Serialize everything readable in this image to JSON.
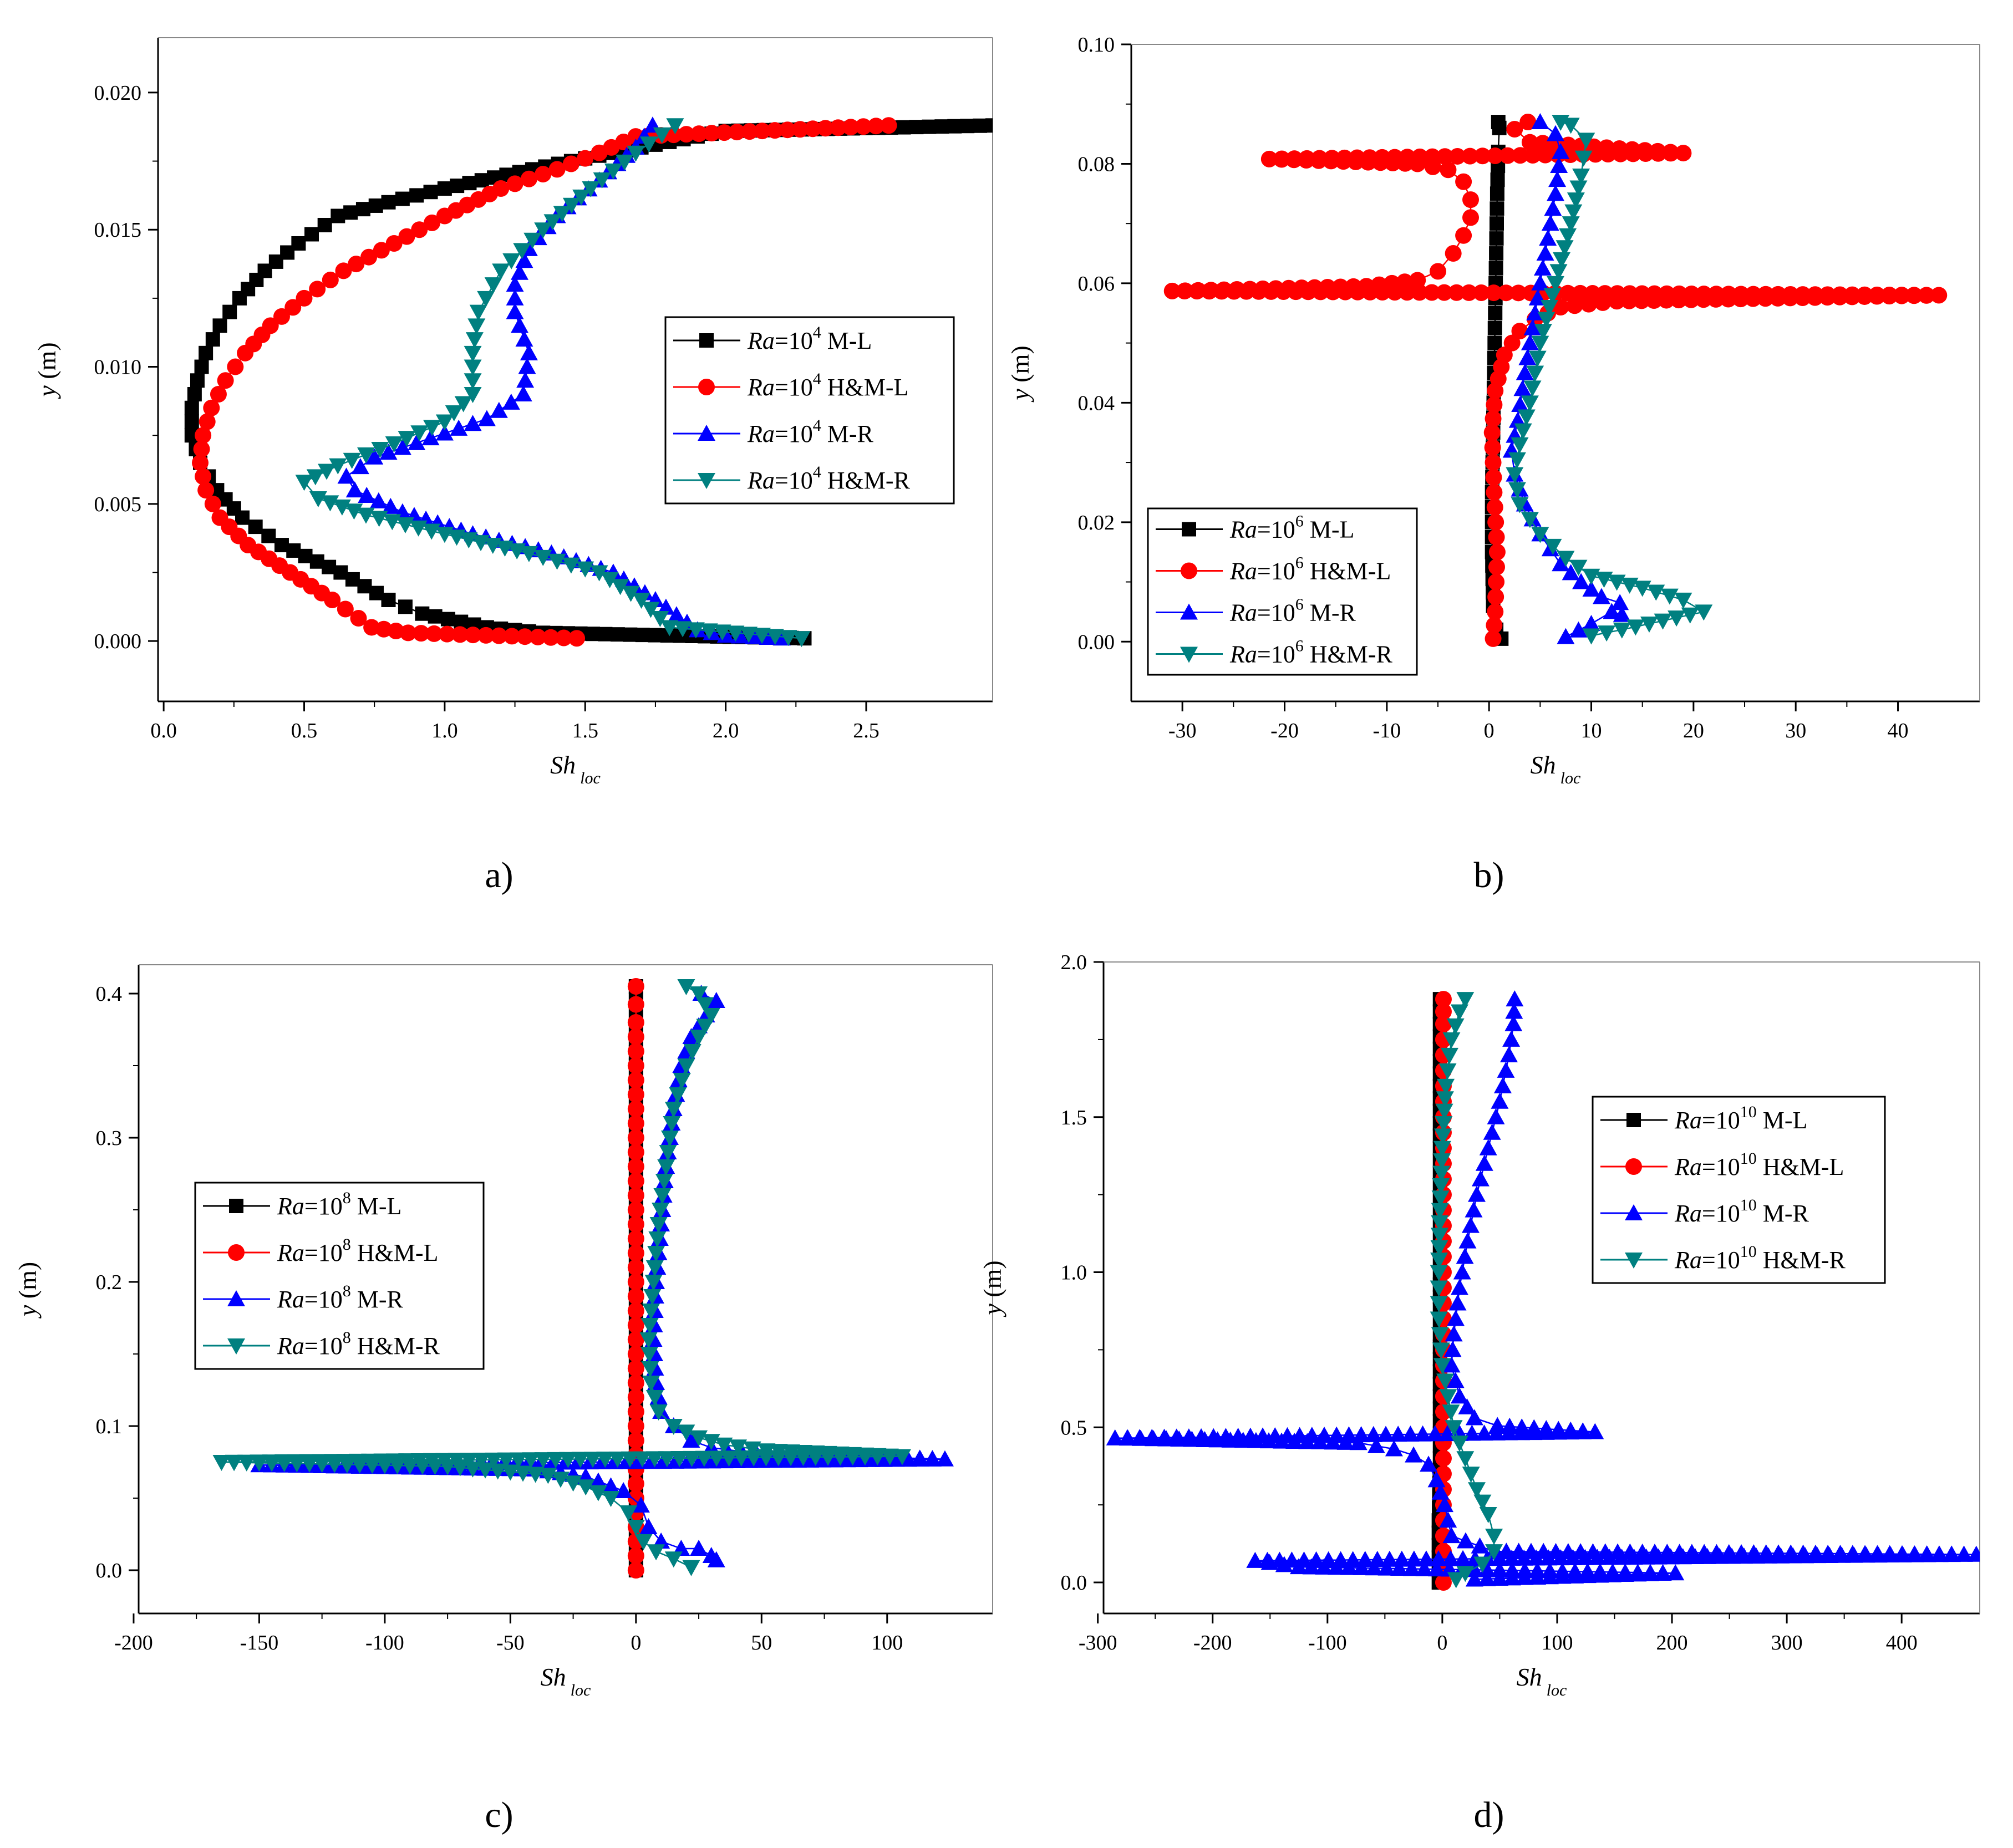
{
  "figure": {
    "panel_labels": [
      "a)",
      "b)",
      "c)",
      "d)"
    ]
  },
  "colors": {
    "ml": "#000000",
    "hml": "#ff0000",
    "mr": "#0000ff",
    "hmr": "#008080"
  },
  "chart_data": [
    {
      "type": "line",
      "panel_label": "a)",
      "xlabel": "Sh",
      "xlabel_sub": "loc",
      "ylabel": "y (m)",
      "xlim": [
        -0.02,
        2.95
      ],
      "ylim": [
        -0.0022,
        0.022
      ],
      "xticks": [
        0,
        0.5,
        1,
        1.5,
        2,
        2.5
      ],
      "xtick_labels": [
        "0.0",
        "0.5",
        "1.0",
        "1.5",
        "2.0",
        "2.5"
      ],
      "yticks": [
        0,
        0.005,
        0.01,
        0.015,
        0.02
      ],
      "ytick_labels": [
        "0.000",
        "0.005",
        "0.010",
        "0.015",
        "0.020"
      ],
      "legend_position": "center-right",
      "series": [
        {
          "name": "M-L",
          "label": "=10",
          "exp": "4",
          "suffix": " M-L",
          "color_key": "ml",
          "marker": "square",
          "x": [
            2.28,
            1.35,
            1.15,
            0.92,
            0.8,
            0.63,
            0.42,
            0.28,
            0.19,
            0.13,
            0.1,
            0.1,
            0.12,
            0.15,
            0.2,
            0.27,
            0.36,
            0.48,
            0.62,
            0.8,
            1.0,
            1.22,
            1.45,
            1.7,
            1.95,
            2.0,
            2.95
          ],
          "y": [
            0.0001,
            0.0003,
            0.0005,
            0.001,
            0.0015,
            0.0025,
            0.0035,
            0.0045,
            0.0055,
            0.0065,
            0.0075,
            0.0085,
            0.0095,
            0.0105,
            0.0115,
            0.0125,
            0.0135,
            0.0145,
            0.0155,
            0.016,
            0.0165,
            0.017,
            0.0175,
            0.018,
            0.0185,
            0.0186,
            0.0188
          ]
        },
        {
          "name": "H&M-L",
          "label": "=10",
          "exp": "4",
          "suffix": " H&M-L",
          "color_key": "hml",
          "marker": "circle",
          "x": [
            1.47,
            0.87,
            0.74,
            0.6,
            0.45,
            0.3,
            0.2,
            0.15,
            0.13,
            0.14,
            0.17,
            0.22,
            0.29,
            0.38,
            0.5,
            0.64,
            0.82,
            1.0,
            1.2,
            1.4,
            1.55,
            1.68,
            2.58
          ],
          "y": [
            0.0001,
            0.0003,
            0.0005,
            0.0015,
            0.0025,
            0.0035,
            0.0045,
            0.0055,
            0.0065,
            0.0075,
            0.0085,
            0.0095,
            0.0105,
            0.0115,
            0.0125,
            0.0135,
            0.0145,
            0.0155,
            0.0165,
            0.0172,
            0.0178,
            0.0184,
            0.0188
          ]
        },
        {
          "name": "M-R",
          "label": "=10",
          "exp": "4",
          "suffix": " M-R",
          "color_key": "mr",
          "marker": "triangle-up",
          "x": [
            2.2,
            2.0,
            1.9,
            1.75,
            1.6,
            1.38,
            1.1,
            0.85,
            0.68,
            0.65,
            0.75,
            0.95,
            1.15,
            1.28,
            1.3,
            1.25,
            1.25,
            1.3,
            1.4,
            1.55,
            1.68,
            1.74
          ],
          "y": [
            0.0001,
            0.0002,
            0.0004,
            0.0015,
            0.0025,
            0.0032,
            0.0039,
            0.0047,
            0.0055,
            0.006,
            0.0067,
            0.0074,
            0.0081,
            0.009,
            0.0105,
            0.012,
            0.013,
            0.0143,
            0.0155,
            0.0168,
            0.018,
            0.0188
          ]
        },
        {
          "name": "H&M-R",
          "label": "=10",
          "exp": "4",
          "suffix": " H&M-R",
          "color_key": "hmr",
          "marker": "triangle-down",
          "x": [
            2.27,
            1.8,
            1.7,
            1.55,
            1.3,
            1.0,
            0.72,
            0.55,
            0.5,
            0.62,
            0.82,
            1.0,
            1.1,
            1.1,
            1.12,
            1.2,
            1.35,
            1.52,
            1.68,
            1.82
          ],
          "y": [
            0.0001,
            0.0005,
            0.0015,
            0.0025,
            0.0032,
            0.0039,
            0.0046,
            0.0052,
            0.0058,
            0.0064,
            0.0072,
            0.008,
            0.009,
            0.0105,
            0.012,
            0.0135,
            0.015,
            0.0165,
            0.0178,
            0.0188
          ]
        }
      ]
    },
    {
      "type": "line",
      "panel_label": "b)",
      "xlabel": "Sh",
      "xlabel_sub": "loc",
      "ylabel": "y (m)",
      "xlim": [
        -35,
        48
      ],
      "ylim": [
        -0.01,
        0.1
      ],
      "xticks": [
        -30,
        -20,
        -10,
        0,
        10,
        20,
        30,
        40
      ],
      "xtick_labels": [
        "-30",
        "-20",
        "-10",
        "0",
        "10",
        "20",
        "30",
        "40"
      ],
      "yticks": [
        0,
        0.02,
        0.04,
        0.06,
        0.08,
        0.1
      ],
      "ytick_labels": [
        "0.00",
        "0.02",
        "0.04",
        "0.06",
        "0.08",
        "0.10"
      ],
      "legend_position": "bottom-left",
      "series": [
        {
          "name": "M-L",
          "label": "=10",
          "exp": "6",
          "suffix": " M-L",
          "color_key": "ml",
          "marker": "square",
          "x": [
            1.2,
            0.7,
            0.4,
            0.3,
            0.3,
            0.4,
            0.5,
            0.6,
            0.7,
            0.8,
            0.9,
            1.0,
            0.9
          ],
          "y": [
            0.0005,
            0.002,
            0.006,
            0.015,
            0.025,
            0.035,
            0.045,
            0.055,
            0.065,
            0.075,
            0.082,
            0.086,
            0.087
          ]
        },
        {
          "name": "H&M-L",
          "label": "=10",
          "exp": "6",
          "suffix": " H&M-L",
          "color_key": "hml",
          "marker": "circle",
          "x": [
            0.4,
            0.6,
            0.8,
            0.5,
            0.3,
            0.6,
            1.5,
            3,
            4.5,
            7,
            12.5,
            44,
            -31,
            -12,
            -7,
            -5,
            -3.5,
            -2.5,
            -1.8,
            -1.8,
            -2.5,
            -4,
            -7,
            -21.5,
            19,
            4,
            2.5,
            3.8
          ],
          "y": [
            0.0005,
            0.005,
            0.015,
            0.025,
            0.035,
            0.042,
            0.048,
            0.052,
            0.054,
            0.056,
            0.057,
            0.058,
            0.0587,
            0.0595,
            0.0605,
            0.062,
            0.065,
            0.068,
            0.071,
            0.074,
            0.077,
            0.079,
            0.08,
            0.0808,
            0.0818,
            0.0836,
            0.0858,
            0.087
          ]
        },
        {
          "name": "M-R",
          "label": "=10",
          "exp": "6",
          "suffix": " M-R",
          "color_key": "mr",
          "marker": "triangle-up",
          "x": [
            7.5,
            10,
            12,
            13,
            12.8,
            11,
            9,
            7,
            5,
            3.5,
            2.5,
            2.2,
            2.8,
            3.5,
            4.5,
            5.5,
            6.5,
            7,
            6.5,
            5
          ],
          "y": [
            0.0008,
            0.003,
            0.005,
            0.0045,
            0.0065,
            0.0075,
            0.01,
            0.013,
            0.018,
            0.023,
            0.028,
            0.032,
            0.037,
            0.045,
            0.055,
            0.065,
            0.075,
            0.082,
            0.085,
            0.087
          ]
        },
        {
          "name": "H&M-R",
          "label": "=10",
          "exp": "6",
          "suffix": " H&M-R",
          "color_key": "hmr",
          "marker": "triangle-down",
          "x": [
            10,
            13,
            21,
            19,
            15,
            10,
            7.5,
            5,
            3,
            2.5,
            3,
            4,
            5,
            6.5,
            8,
            9,
            9.5,
            8,
            7
          ],
          "y": [
            0.001,
            0.002,
            0.005,
            0.007,
            0.009,
            0.011,
            0.014,
            0.018,
            0.023,
            0.028,
            0.033,
            0.04,
            0.05,
            0.06,
            0.07,
            0.078,
            0.084,
            0.0865,
            0.087
          ]
        }
      ]
    },
    {
      "type": "line",
      "panel_label": "c)",
      "xlabel": "Sh",
      "xlabel_sub": "loc",
      "ylabel": "y (m)",
      "xlim": [
        -198,
        142
      ],
      "ylim": [
        -0.03,
        0.42
      ],
      "xticks": [
        -200,
        -150,
        -100,
        -50,
        0,
        50,
        100
      ],
      "xtick_labels": [
        "-200",
        "-150",
        "-100",
        "-50",
        "0",
        "50",
        "100"
      ],
      "yticks": [
        0,
        0.1,
        0.2,
        0.3,
        0.4
      ],
      "ytick_labels": [
        "0.0",
        "0.1",
        "0.2",
        "0.3",
        "0.4"
      ],
      "legend_position": "center-left",
      "series": [
        {
          "name": "M-L",
          "label": "=10",
          "exp": "8",
          "suffix": " M-L",
          "color_key": "ml",
          "marker": "square",
          "x": [
            0,
            0,
            0,
            0,
            0,
            0,
            0,
            0,
            0
          ],
          "y": [
            0,
            0.05,
            0.1,
            0.15,
            0.2,
            0.25,
            0.3,
            0.35,
            0.405
          ]
        },
        {
          "name": "H&M-L",
          "label": "=10",
          "exp": "8",
          "suffix": " H&M-L",
          "color_key": "hml",
          "marker": "circle",
          "x": [
            0,
            0,
            0,
            0,
            0,
            0,
            0,
            0,
            0,
            0,
            0,
            0,
            0,
            0,
            0,
            0,
            0,
            0,
            0,
            0,
            0
          ],
          "y": [
            0,
            0.02,
            0.04,
            0.06,
            0.08,
            0.1,
            0.12,
            0.14,
            0.16,
            0.18,
            0.2,
            0.22,
            0.24,
            0.26,
            0.28,
            0.3,
            0.32,
            0.34,
            0.36,
            0.38,
            0.405
          ]
        },
        {
          "name": "M-R",
          "label": "=10",
          "exp": "8",
          "suffix": " M-R",
          "color_key": "mr",
          "marker": "triangle-up",
          "x": [
            32,
            30,
            25,
            18,
            10,
            5,
            2,
            -5,
            -20,
            -40,
            -150,
            123,
            48,
            30,
            22,
            15,
            10,
            8,
            7,
            8,
            10,
            12,
            15,
            18,
            22,
            28,
            32,
            26
          ],
          "y": [
            0.007,
            0.01,
            0.015,
            0.015,
            0.02,
            0.03,
            0.045,
            0.055,
            0.065,
            0.07,
            0.073,
            0.077,
            0.081,
            0.085,
            0.09,
            0.1,
            0.11,
            0.13,
            0.16,
            0.2,
            0.24,
            0.28,
            0.32,
            0.35,
            0.37,
            0.385,
            0.395,
            0.4
          ]
        },
        {
          "name": "H&M-R",
          "label": "=10",
          "exp": "8",
          "suffix": " H&M-R",
          "color_key": "hmr",
          "marker": "triangle-down",
          "x": [
            22,
            15,
            8,
            3,
            0,
            -3,
            -10,
            -20,
            -35,
            -75,
            -165,
            106,
            52,
            35,
            25,
            15,
            9,
            6,
            5,
            7,
            9,
            12,
            15,
            20,
            25,
            30,
            25,
            20
          ],
          "y": [
            0.002,
            0.008,
            0.013,
            0.02,
            0.03,
            0.04,
            0.05,
            0.058,
            0.066,
            0.072,
            0.075,
            0.079,
            0.083,
            0.087,
            0.092,
            0.1,
            0.11,
            0.13,
            0.16,
            0.2,
            0.24,
            0.28,
            0.32,
            0.35,
            0.37,
            0.385,
            0.4,
            0.405
          ]
        }
      ]
    },
    {
      "type": "line",
      "panel_label": "d)",
      "xlabel": "Sh",
      "xlabel_sub": "loc",
      "ylabel": "y (m)",
      "xlim": [
        -295,
        468
      ],
      "ylim": [
        -0.1,
        2.0
      ],
      "xticks": [
        -300,
        -200,
        -100,
        0,
        100,
        200,
        300,
        400
      ],
      "xtick_labels": [
        "-300",
        "-200",
        "-100",
        "0",
        "100",
        "200",
        "300",
        "400"
      ],
      "yticks": [
        0,
        0.5,
        1,
        1.5,
        2
      ],
      "ytick_labels": [
        "0.0",
        "0.5",
        "1.0",
        "1.5",
        "2.0"
      ],
      "legend_position": "top-right",
      "series": [
        {
          "name": "M-L",
          "label": "=10",
          "exp": "10",
          "suffix": " M-L",
          "color_key": "ml",
          "marker": "square",
          "x": [
            -3,
            -3,
            -2,
            -2,
            -2,
            -2,
            -2,
            -2,
            -2,
            -2
          ],
          "y": [
            0,
            0.2,
            0.4,
            0.6,
            0.8,
            1.0,
            1.2,
            1.4,
            1.6,
            1.88
          ]
        },
        {
          "name": "H&M-L",
          "label": "=10",
          "exp": "10",
          "suffix": " H&M-L",
          "color_key": "hml",
          "marker": "circle",
          "x": [
            1,
            1,
            1,
            1,
            1,
            1,
            1,
            1,
            1,
            1,
            1,
            1,
            1,
            1,
            1,
            1,
            1,
            1,
            1,
            1
          ],
          "y": [
            0,
            0.1,
            0.2,
            0.3,
            0.4,
            0.5,
            0.6,
            0.7,
            0.8,
            0.9,
            1.0,
            1.1,
            1.2,
            1.3,
            1.4,
            1.5,
            1.6,
            1.7,
            1.8,
            1.88
          ]
        },
        {
          "name": "M-R",
          "label": "=10",
          "exp": "10",
          "suffix": " M-R",
          "color_key": "mr",
          "marker": "triangle-up",
          "x": [
            28,
            203,
            -125,
            -163,
            465,
            45,
            8,
            2,
            -5,
            -12,
            -25,
            -42,
            -73,
            -285,
            133,
            48,
            28,
            15,
            8,
            10,
            15,
            22,
            30,
            40,
            50,
            58,
            62,
            63
          ],
          "y": [
            0.01,
            0.03,
            0.05,
            0.07,
            0.09,
            0.1,
            0.15,
            0.25,
            0.33,
            0.38,
            0.41,
            0.43,
            0.45,
            0.465,
            0.485,
            0.505,
            0.53,
            0.6,
            0.7,
            0.8,
            0.95,
            1.1,
            1.25,
            1.4,
            1.55,
            1.7,
            1.8,
            1.88
          ]
        },
        {
          "name": "H&M-R",
          "label": "=10",
          "exp": "10",
          "suffix": " H&M-R",
          "color_key": "hmr",
          "marker": "triangle-down",
          "x": [
            12,
            20,
            35,
            45,
            45,
            40,
            30,
            20,
            10,
            5,
            0,
            -3,
            -3,
            -2,
            0,
            3,
            8,
            15,
            20
          ],
          "y": [
            0.01,
            0.03,
            0.06,
            0.1,
            0.15,
            0.22,
            0.3,
            0.4,
            0.5,
            0.6,
            0.7,
            0.85,
            1.0,
            1.2,
            1.4,
            1.6,
            1.75,
            1.84,
            1.88
          ]
        }
      ]
    }
  ]
}
